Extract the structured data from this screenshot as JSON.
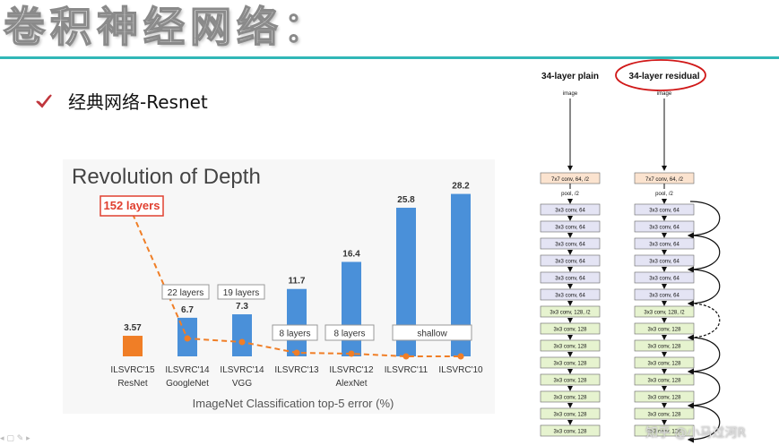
{
  "slide": {
    "title": "卷积神经网络：",
    "bullet": "经典网络-Resnet",
    "watermark": "知乎 @小马过河R",
    "accent_color": "#31b7b7",
    "icons": {
      "bullet": "check-icon",
      "annotation": "red-circle-annotation"
    }
  },
  "chart_data": {
    "type": "bar",
    "title": "Revolution of Depth",
    "xlabel": "ImageNet Classification top-5 error (%)",
    "categories": [
      {
        "line1": "ILSVRC'15",
        "line2": "ResNet"
      },
      {
        "line1": "ILSVRC'14",
        "line2": "GoogleNet"
      },
      {
        "line1": "ILSVRC'14",
        "line2": "VGG"
      },
      {
        "line1": "ILSVRC'13",
        "line2": ""
      },
      {
        "line1": "ILSVRC'12",
        "line2": "AlexNet"
      },
      {
        "line1": "ILSVRC'11",
        "line2": ""
      },
      {
        "line1": "ILSVRC'10",
        "line2": ""
      }
    ],
    "values": [
      3.57,
      6.7,
      7.3,
      11.7,
      16.4,
      25.8,
      28.2
    ],
    "value_labels": [
      "3.57",
      "6.7",
      "7.3",
      "11.7",
      "16.4",
      "25.8",
      "28.2"
    ],
    "bar_colors": [
      "#f07e26",
      "#4a90d9",
      "#4a90d9",
      "#4a90d9",
      "#4a90d9",
      "#4a90d9",
      "#4a90d9"
    ],
    "ylim": [
      0,
      30
    ],
    "depth_labels": [
      {
        "text": "152 layers",
        "bar": 0,
        "highlight": true
      },
      {
        "text": "22 layers",
        "bar": 1
      },
      {
        "text": "19 layers",
        "bar": 2
      },
      {
        "text": "8 layers",
        "bar": 3
      },
      {
        "text": "8 layers",
        "bar": 4
      },
      {
        "text": "shallow",
        "bar": 5,
        "span": 2
      }
    ],
    "depth_line_color": "#f07e26"
  },
  "diagram": {
    "plain_title": "34-layer plain",
    "residual_title": "34-layer residual",
    "input_label": "image",
    "pool_label": "pool, /2",
    "first_layer": "7x7 conv, 64, /2",
    "layers": [
      "3x3 conv, 64",
      "3x3 conv, 64",
      "3x3 conv, 64",
      "3x3 conv, 64",
      "3x3 conv, 64",
      "3x3 conv, 64",
      "3x3 conv, 128, /2",
      "3x3 conv, 128",
      "3x3 conv, 128",
      "3x3 conv, 128",
      "3x3 conv, 128",
      "3x3 conv, 128",
      "3x3 conv, 128",
      "3x3 conv, 128"
    ],
    "colors": {
      "first": "#fbe3cf",
      "stage1": "#e4e4f4",
      "stage2": "#e6f3cf"
    }
  }
}
